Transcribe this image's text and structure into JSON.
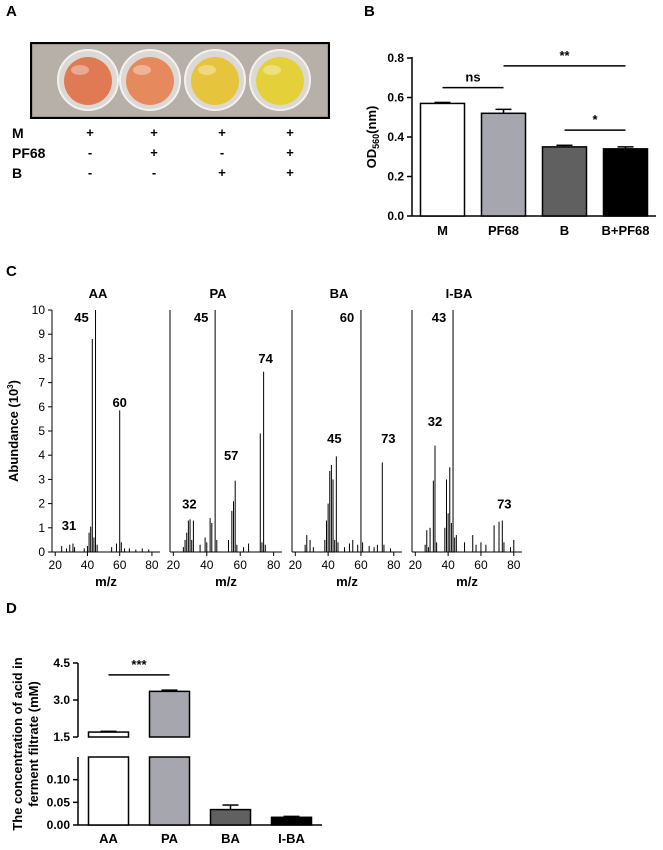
{
  "panel_labels": {
    "a": "A",
    "b": "B",
    "c": "C",
    "d": "D"
  },
  "panel_a": {
    "rows": [
      {
        "label": "M",
        "signs": [
          "+",
          "+",
          "+",
          "+"
        ]
      },
      {
        "label": "PF68",
        "signs": [
          "-",
          "+",
          "-",
          "+"
        ]
      },
      {
        "label": "B",
        "signs": [
          "-",
          "-",
          "+",
          "+"
        ]
      }
    ],
    "well_colors": [
      "#e07a55",
      "#e68a5e",
      "#e6c43c",
      "#e4d038"
    ]
  },
  "chart_data": [
    {
      "id": "B",
      "type": "bar",
      "categories": [
        "M",
        "PF68",
        "B",
        "B+PF68"
      ],
      "values": [
        0.57,
        0.52,
        0.35,
        0.34
      ],
      "errors": [
        0.005,
        0.02,
        0.008,
        0.01
      ],
      "colors": [
        "#ffffff",
        "#a6a6ae",
        "#606060",
        "#000000"
      ],
      "ylabel_main": "OD",
      "ylabel_sub": "560",
      "ylabel_tail": "(nm)",
      "ylim": [
        0,
        0.8
      ],
      "yticks": [
        "0.0",
        "0.2",
        "0.4",
        "0.6",
        "0.8"
      ],
      "annotations": [
        {
          "text": "ns",
          "from": "M",
          "to": "PF68"
        },
        {
          "text": "**",
          "from": "PF68",
          "to": "B+PF68"
        },
        {
          "text": "*",
          "from": "B",
          "to": "B+PF68"
        }
      ]
    },
    {
      "id": "C",
      "type": "bar",
      "subtype": "mass-spectrum",
      "ylabel": "Abundance (10",
      "ylabel_sup": "3",
      "ylabel_tail": ")",
      "xlabel": "m/z",
      "ylim": [
        0,
        10
      ],
      "yticks": [
        "0",
        "1",
        "2",
        "3",
        "4",
        "5",
        "6",
        "7",
        "8",
        "9",
        "10"
      ],
      "xticks": [
        "20",
        "40",
        "60",
        "80"
      ],
      "xlim": [
        18,
        85
      ],
      "spectra": [
        {
          "title": "AA",
          "peaks": [
            [
              24,
              0.25
            ],
            [
              27,
              0.15
            ],
            [
              29,
              0.3
            ],
            [
              31,
              0.35
            ],
            [
              32,
              0.2
            ],
            [
              38,
              0.15
            ],
            [
              40,
              0.25
            ],
            [
              41,
              0.8
            ],
            [
              42,
              1.05
            ],
            [
              43,
              8.8
            ],
            [
              44,
              0.6
            ],
            [
              45,
              10.0
            ],
            [
              46,
              0.3
            ],
            [
              55,
              0.2
            ],
            [
              58,
              0.35
            ],
            [
              60,
              5.85
            ],
            [
              61,
              0.4
            ],
            [
              63,
              0.15
            ],
            [
              66,
              0.15
            ],
            [
              70,
              0.1
            ],
            [
              74,
              0.15
            ],
            [
              78,
              0.1
            ]
          ],
          "labels": [
            {
              "mz": 45,
              "text": "45",
              "at": 9.5,
              "dx": -14
            },
            {
              "mz": 60,
              "text": "60",
              "at": 6.0,
              "dx": 0
            },
            {
              "mz": 31,
              "text": "31",
              "at": 0.9,
              "dx": -4
            }
          ]
        },
        {
          "title": "PA",
          "peaks": [
            [
              26,
              0.2
            ],
            [
              27,
              0.5
            ],
            [
              28,
              0.8
            ],
            [
              29,
              1.3
            ],
            [
              30,
              1.35
            ],
            [
              31,
              0.5
            ],
            [
              32,
              1.3
            ],
            [
              36,
              0.3
            ],
            [
              39,
              0.6
            ],
            [
              40,
              0.4
            ],
            [
              42,
              1.4
            ],
            [
              43,
              1.2
            ],
            [
              45,
              10.0
            ],
            [
              46,
              0.5
            ],
            [
              53,
              0.5
            ],
            [
              55,
              1.7
            ],
            [
              56,
              2.1
            ],
            [
              57,
              2.95
            ],
            [
              58,
              0.3
            ],
            [
              62,
              0.2
            ],
            [
              65,
              0.35
            ],
            [
              72,
              4.9
            ],
            [
              73,
              0.4
            ],
            [
              74,
              7.45
            ],
            [
              75,
              0.3
            ]
          ],
          "labels": [
            {
              "mz": 45,
              "text": "45",
              "at": 9.5,
              "dx": -14
            },
            {
              "mz": 74,
              "text": "74",
              "at": 7.8,
              "dx": 2
            },
            {
              "mz": 57,
              "text": "57",
              "at": 3.8,
              "dx": -4
            },
            {
              "mz": 32,
              "text": "32",
              "at": 1.8,
              "dx": -4
            }
          ]
        },
        {
          "title": "BA",
          "peaks": [
            [
              26,
              0.3
            ],
            [
              27,
              0.7
            ],
            [
              29,
              0.5
            ],
            [
              31,
              0.2
            ],
            [
              38,
              0.5
            ],
            [
              39,
              1.3
            ],
            [
              40,
              2.0
            ],
            [
              41,
              3.35
            ],
            [
              42,
              3.6
            ],
            [
              43,
              3.0
            ],
            [
              44,
              0.5
            ],
            [
              45,
              3.95
            ],
            [
              46,
              0.4
            ],
            [
              50,
              0.2
            ],
            [
              53,
              0.35
            ],
            [
              55,
              0.5
            ],
            [
              58,
              0.3
            ],
            [
              60,
              10.0
            ],
            [
              61,
              0.4
            ],
            [
              65,
              0.25
            ],
            [
              68,
              0.2
            ],
            [
              70,
              0.3
            ],
            [
              73,
              3.7
            ],
            [
              74,
              0.3
            ],
            [
              78,
              0.15
            ]
          ],
          "labels": [
            {
              "mz": 60,
              "text": "60",
              "at": 9.5,
              "dx": -14
            },
            {
              "mz": 45,
              "text": "45",
              "at": 4.5,
              "dx": -2
            },
            {
              "mz": 73,
              "text": "73",
              "at": 4.5,
              "dx": 6
            }
          ]
        },
        {
          "title": "I-BA",
          "peaks": [
            [
              26,
              0.3
            ],
            [
              27,
              0.9
            ],
            [
              28,
              0.2
            ],
            [
              29,
              1.0
            ],
            [
              31,
              2.95
            ],
            [
              32,
              4.4
            ],
            [
              33,
              0.4
            ],
            [
              38,
              1.0
            ],
            [
              39,
              3.0
            ],
            [
              40,
              1.6
            ],
            [
              41,
              3.5
            ],
            [
              42,
              1.2
            ],
            [
              43,
              10.0
            ],
            [
              44,
              0.6
            ],
            [
              45,
              0.7
            ],
            [
              50,
              0.4
            ],
            [
              55,
              0.7
            ],
            [
              57,
              0.3
            ],
            [
              60,
              0.4
            ],
            [
              63,
              0.3
            ],
            [
              68,
              1.1
            ],
            [
              71,
              1.25
            ],
            [
              73,
              1.3
            ],
            [
              74,
              0.4
            ],
            [
              78,
              0.2
            ],
            [
              80,
              0.5
            ]
          ],
          "labels": [
            {
              "mz": 43,
              "text": "43",
              "at": 9.5,
              "dx": -14
            },
            {
              "mz": 32,
              "text": "32",
              "at": 5.2,
              "dx": 0
            },
            {
              "mz": 73,
              "text": "73",
              "at": 1.8,
              "dx": 2
            }
          ]
        }
      ]
    },
    {
      "id": "D",
      "type": "bar",
      "categories": [
        "AA",
        "PA",
        "BA",
        "I-BA"
      ],
      "values": [
        1.7,
        3.35,
        0.034,
        0.017
      ],
      "errors": [
        0.03,
        0.05,
        0.01,
        0.002
      ],
      "colors": [
        "#ffffff",
        "#a6a6ae",
        "#606060",
        "#000000"
      ],
      "ylabel_line1": "The concentration of acid in",
      "ylabel_line2": "ferment filtrate (mM)",
      "y_broken": true,
      "ylim_lower": [
        0,
        0.15
      ],
      "ylim_upper": [
        1.5,
        4.5
      ],
      "yticks_lower": [
        "0.00",
        "0.05",
        "0.10"
      ],
      "yticks_upper": [
        "1.5",
        "3.0",
        "4.5"
      ],
      "annotations": [
        {
          "text": "***",
          "from": "AA",
          "to": "PA"
        }
      ]
    }
  ]
}
